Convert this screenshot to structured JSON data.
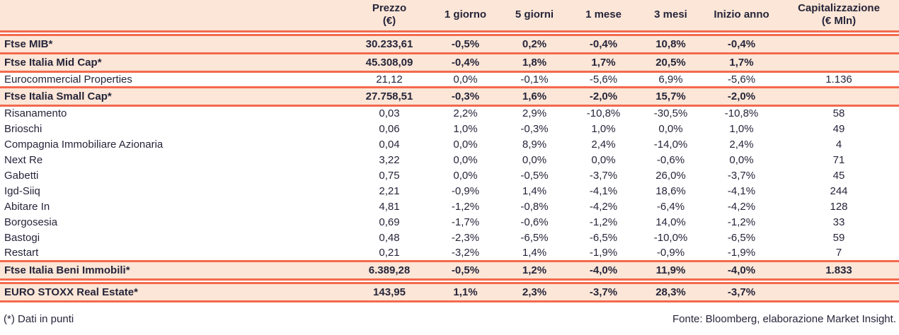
{
  "table": {
    "columns": [
      "",
      "Prezzo\n(€)",
      "1 giorno",
      "5 giorni",
      "1 mese",
      "3 mesi",
      "Inizio anno",
      "Capitalizzazione\n(€ Mln)"
    ],
    "rows": [
      {
        "name": "Ftse MIB*",
        "type": "index",
        "gap_before": true,
        "values": [
          "30.233,61",
          "-0,5%",
          "0,2%",
          "-0,4%",
          "10,8%",
          "-0,4%",
          ""
        ]
      },
      {
        "name": "Ftse Italia Mid Cap*",
        "type": "index",
        "values": [
          "45.308,09",
          "-0,4%",
          "1,8%",
          "1,7%",
          "20,5%",
          "1,7%",
          ""
        ]
      },
      {
        "name": "Eurocommercial Properties",
        "type": "stock",
        "values": [
          "21,12",
          "0,0%",
          "-0,1%",
          "-5,6%",
          "6,9%",
          "-5,6%",
          "1.136"
        ]
      },
      {
        "name": "Ftse Italia Small Cap*",
        "type": "index",
        "values": [
          "27.758,51",
          "-0,3%",
          "1,6%",
          "-2,0%",
          "15,7%",
          "-2,0%",
          ""
        ]
      },
      {
        "name": "Risanamento",
        "type": "stock",
        "values": [
          "0,03",
          "2,2%",
          "2,9%",
          "-10,8%",
          "-30,5%",
          "-10,8%",
          "58"
        ]
      },
      {
        "name": "Brioschi",
        "type": "stock",
        "values": [
          "0,06",
          "1,0%",
          "-0,3%",
          "1,0%",
          "0,0%",
          "1,0%",
          "49"
        ]
      },
      {
        "name": "Compagnia Immobiliare Azionaria",
        "type": "stock",
        "values": [
          "0,04",
          "0,0%",
          "8,9%",
          "2,4%",
          "-14,0%",
          "2,4%",
          "4"
        ]
      },
      {
        "name": "Next Re",
        "type": "stock",
        "values": [
          "3,22",
          "0,0%",
          "0,0%",
          "0,0%",
          "-0,6%",
          "0,0%",
          "71"
        ]
      },
      {
        "name": "Gabetti",
        "type": "stock",
        "values": [
          "0,75",
          "0,0%",
          "-0,5%",
          "-3,7%",
          "26,0%",
          "-3,7%",
          "45"
        ]
      },
      {
        "name": "Igd-Siiq",
        "type": "stock",
        "values": [
          "2,21",
          "-0,9%",
          "1,4%",
          "-4,1%",
          "18,6%",
          "-4,1%",
          "244"
        ]
      },
      {
        "name": "Abitare In",
        "type": "stock",
        "values": [
          "4,81",
          "-1,2%",
          "-0,8%",
          "-4,2%",
          "-6,4%",
          "-4,2%",
          "128"
        ]
      },
      {
        "name": "Borgosesia",
        "type": "stock",
        "values": [
          "0,69",
          "-1,7%",
          "-0,6%",
          "-1,2%",
          "14,0%",
          "-1,2%",
          "33"
        ]
      },
      {
        "name": "Bastogi",
        "type": "stock",
        "values": [
          "0,48",
          "-2,3%",
          "-6,5%",
          "-6,5%",
          "-10,0%",
          "-6,5%",
          "59"
        ]
      },
      {
        "name": "Restart",
        "type": "stock",
        "values": [
          "0,21",
          "-3,2%",
          "1,4%",
          "-1,9%",
          "-0,9%",
          "-1,9%",
          "7"
        ]
      },
      {
        "name": "Ftse Italia Beni Immobili*",
        "type": "index",
        "values": [
          "6.389,28",
          "-0,5%",
          "1,2%",
          "-4,0%",
          "11,9%",
          "-4,0%",
          "1.833"
        ]
      },
      {
        "name": "EURO STOXX Real Estate*",
        "type": "index",
        "gap_before": true,
        "values": [
          "143,95",
          "1,1%",
          "2,3%",
          "-3,7%",
          "28,3%",
          "-3,7%",
          ""
        ]
      }
    ]
  },
  "footer": {
    "left": "(*) Dati in punti",
    "right": "Fonte: Bloomberg, elaborazione Market Insight."
  },
  "colors": {
    "accent_rule": "#f4694d",
    "highlight_row_bg": "#fbe6d7",
    "text": "#26253a"
  }
}
